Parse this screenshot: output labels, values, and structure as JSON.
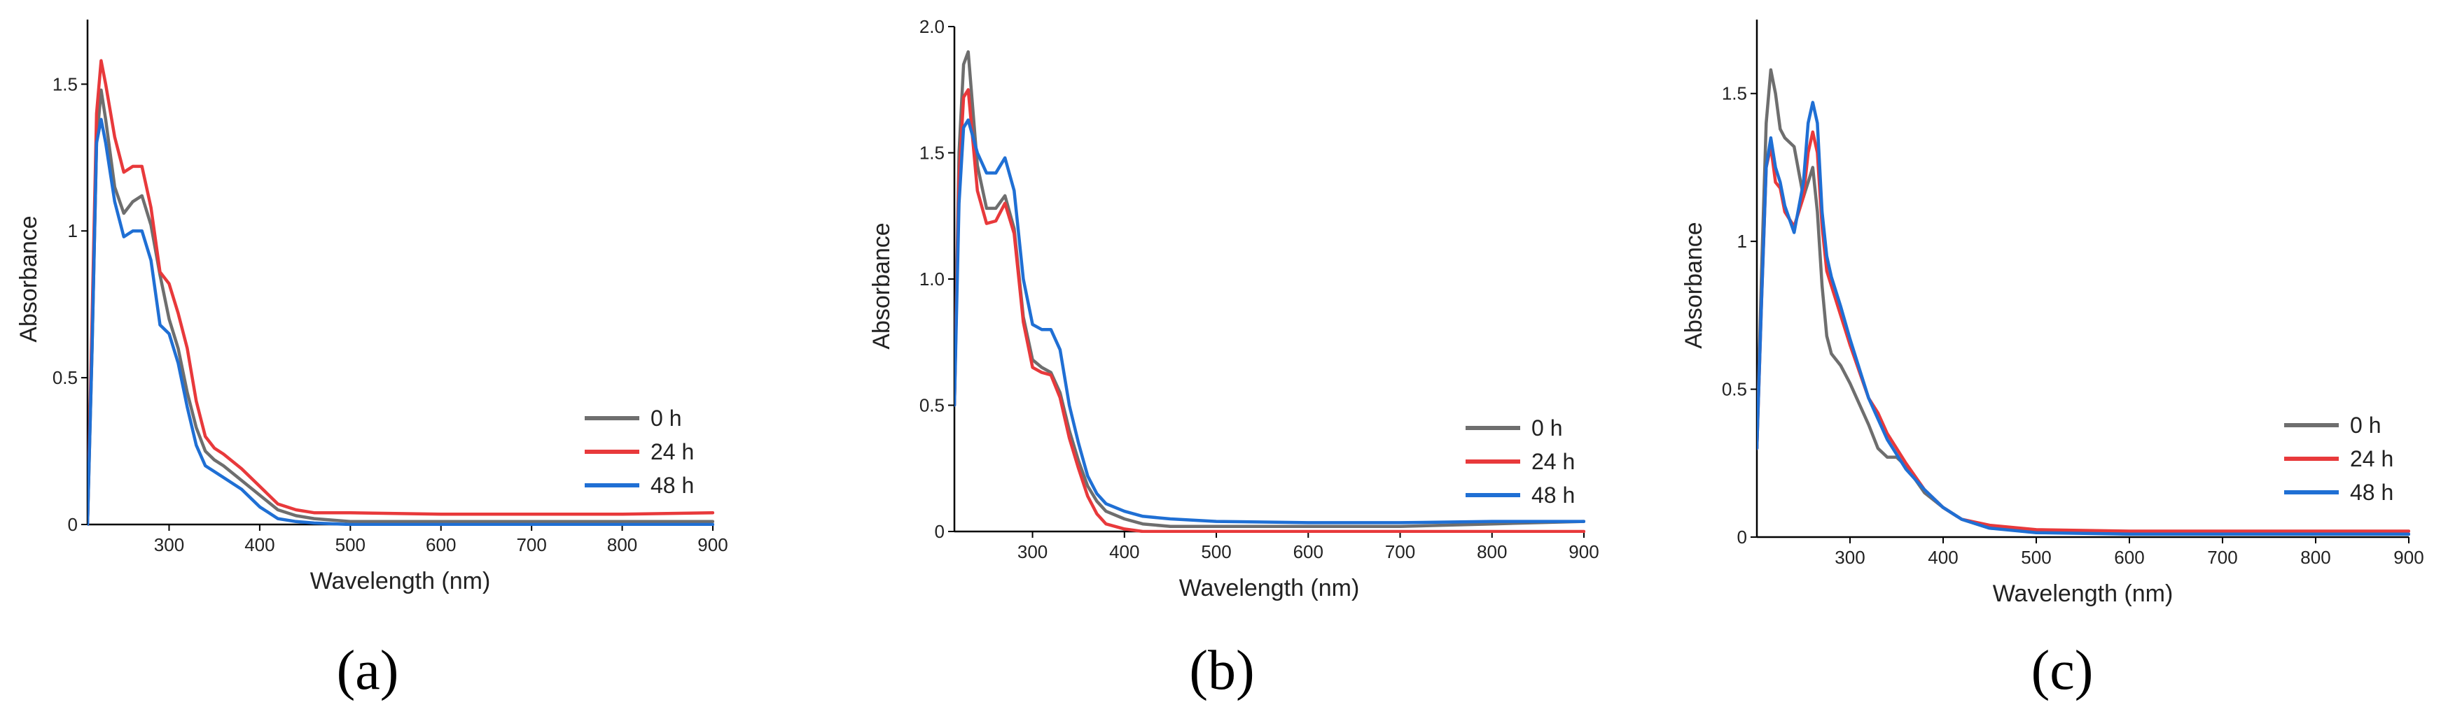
{
  "colors": {
    "0h": "#6e6e6e",
    "24h": "#e8393b",
    "48h": "#1f6fd4"
  },
  "chart_data": [
    {
      "type": "line",
      "panel_label": "(a)",
      "xlabel": "Wavelength (nm)",
      "ylabel": "Absorbance",
      "xlim": [
        210,
        900
      ],
      "ylim": [
        0,
        1.72
      ],
      "xticks": [
        300,
        400,
        500,
        600,
        700,
        800,
        900
      ],
      "yticks": [
        0,
        0.5,
        1,
        1.5
      ],
      "ytick_labels": [
        "0",
        "0.5",
        "1",
        "1.5"
      ],
      "legend": [
        "0 h",
        "24 h",
        "48 h"
      ],
      "series": [
        {
          "name": "0 h",
          "color_key": "0h",
          "x": [
            210,
            215,
            220,
            225,
            230,
            240,
            250,
            260,
            270,
            280,
            290,
            300,
            310,
            320,
            330,
            340,
            350,
            360,
            380,
            400,
            420,
            440,
            460,
            500,
            600,
            700,
            800,
            900
          ],
          "y": [
            0,
            0.6,
            1.3,
            1.48,
            1.38,
            1.15,
            1.06,
            1.1,
            1.12,
            1.02,
            0.85,
            0.7,
            0.6,
            0.45,
            0.33,
            0.25,
            0.22,
            0.2,
            0.15,
            0.1,
            0.05,
            0.03,
            0.02,
            0.01,
            0.01,
            0.01,
            0.01,
            0.01
          ]
        },
        {
          "name": "24 h",
          "color_key": "24h",
          "x": [
            210,
            215,
            220,
            225,
            230,
            240,
            250,
            260,
            270,
            280,
            290,
            300,
            310,
            320,
            330,
            340,
            350,
            360,
            380,
            400,
            420,
            440,
            460,
            500,
            600,
            700,
            800,
            900
          ],
          "y": [
            0,
            0.7,
            1.4,
            1.58,
            1.5,
            1.32,
            1.2,
            1.22,
            1.22,
            1.08,
            0.86,
            0.82,
            0.72,
            0.6,
            0.42,
            0.3,
            0.26,
            0.24,
            0.19,
            0.13,
            0.07,
            0.05,
            0.04,
            0.04,
            0.035,
            0.035,
            0.035,
            0.04
          ]
        },
        {
          "name": "48 h",
          "color_key": "48h",
          "x": [
            210,
            215,
            220,
            225,
            230,
            240,
            250,
            260,
            270,
            280,
            290,
            300,
            310,
            320,
            330,
            340,
            350,
            360,
            380,
            400,
            420,
            440,
            460,
            500,
            600,
            700,
            800,
            900
          ],
          "y": [
            0,
            0.6,
            1.3,
            1.38,
            1.3,
            1.1,
            0.98,
            1.0,
            1.0,
            0.9,
            0.68,
            0.65,
            0.55,
            0.4,
            0.27,
            0.2,
            0.18,
            0.16,
            0.12,
            0.06,
            0.02,
            0.01,
            0.005,
            0,
            0,
            0,
            0,
            0
          ]
        }
      ]
    },
    {
      "type": "line",
      "panel_label": "(b)",
      "xlabel": "Wavelength (nm)",
      "ylabel": "Absorbance",
      "xlim": [
        215,
        900
      ],
      "ylim": [
        0,
        2.0
      ],
      "xticks": [
        300,
        400,
        500,
        600,
        700,
        800,
        900
      ],
      "yticks": [
        0,
        0.5,
        1.0,
        1.5,
        2.0
      ],
      "ytick_labels": [
        "0",
        "0.5",
        "1.0",
        "1.5",
        "2.0"
      ],
      "legend": [
        "0 h",
        "24 h",
        "48 h"
      ],
      "series": [
        {
          "name": "0 h",
          "color_key": "0h",
          "x": [
            215,
            220,
            225,
            230,
            240,
            250,
            260,
            270,
            280,
            290,
            300,
            310,
            320,
            330,
            340,
            350,
            360,
            370,
            380,
            400,
            420,
            450,
            500,
            600,
            700,
            800,
            900
          ],
          "y": [
            0.5,
            1.5,
            1.85,
            1.9,
            1.45,
            1.28,
            1.28,
            1.33,
            1.2,
            0.85,
            0.68,
            0.65,
            0.63,
            0.55,
            0.4,
            0.28,
            0.18,
            0.12,
            0.08,
            0.05,
            0.03,
            0.02,
            0.02,
            0.02,
            0.02,
            0.03,
            0.04
          ]
        },
        {
          "name": "24 h",
          "color_key": "24h",
          "x": [
            215,
            220,
            225,
            230,
            240,
            250,
            260,
            270,
            280,
            290,
            300,
            310,
            320,
            330,
            340,
            350,
            360,
            370,
            380,
            400,
            420,
            450,
            500,
            600,
            700,
            800,
            900
          ],
          "y": [
            0.5,
            1.4,
            1.72,
            1.75,
            1.35,
            1.22,
            1.23,
            1.3,
            1.18,
            0.83,
            0.65,
            0.63,
            0.62,
            0.53,
            0.37,
            0.25,
            0.14,
            0.07,
            0.03,
            0.01,
            0,
            0,
            0,
            0,
            0,
            0,
            0
          ]
        },
        {
          "name": "48 h",
          "color_key": "48h",
          "x": [
            215,
            220,
            225,
            230,
            240,
            250,
            260,
            270,
            280,
            290,
            300,
            310,
            320,
            330,
            340,
            350,
            360,
            370,
            380,
            400,
            420,
            450,
            500,
            600,
            700,
            800,
            900
          ],
          "y": [
            0.5,
            1.3,
            1.6,
            1.63,
            1.5,
            1.42,
            1.42,
            1.48,
            1.35,
            1.0,
            0.82,
            0.8,
            0.8,
            0.72,
            0.5,
            0.35,
            0.22,
            0.15,
            0.11,
            0.08,
            0.06,
            0.05,
            0.04,
            0.035,
            0.035,
            0.04,
            0.04
          ]
        }
      ]
    },
    {
      "type": "line",
      "panel_label": "(c)",
      "xlabel": "Wavelength (nm)",
      "ylabel": "Absorbance",
      "xlim": [
        200,
        900
      ],
      "ylim": [
        0,
        1.75
      ],
      "xticks": [
        300,
        400,
        500,
        600,
        700,
        800,
        900
      ],
      "yticks": [
        0,
        0.5,
        1,
        1.5
      ],
      "ytick_labels": [
        "0",
        "0.5",
        "1",
        "1.5"
      ],
      "legend": [
        "0 h",
        "24 h",
        "48 h"
      ],
      "series": [
        {
          "name": "0 h",
          "color_key": "0h",
          "x": [
            200,
            205,
            210,
            215,
            220,
            225,
            230,
            240,
            250,
            255,
            260,
            265,
            270,
            275,
            280,
            290,
            300,
            310,
            320,
            330,
            340,
            350,
            360,
            380,
            400,
            420,
            450,
            500,
            600,
            700,
            800,
            900
          ],
          "y": [
            0.3,
            0.9,
            1.4,
            1.58,
            1.5,
            1.38,
            1.35,
            1.32,
            1.15,
            1.2,
            1.25,
            1.1,
            0.85,
            0.68,
            0.62,
            0.58,
            0.52,
            0.45,
            0.38,
            0.3,
            0.27,
            0.27,
            0.24,
            0.15,
            0.1,
            0.06,
            0.03,
            0.02,
            0.01,
            0.01,
            0.01,
            0.01
          ]
        },
        {
          "name": "24 h",
          "color_key": "24h",
          "x": [
            200,
            205,
            210,
            215,
            220,
            225,
            230,
            240,
            250,
            255,
            260,
            265,
            270,
            275,
            280,
            290,
            300,
            310,
            320,
            330,
            340,
            350,
            360,
            380,
            400,
            420,
            450,
            500,
            600,
            700,
            800,
            900
          ],
          "y": [
            0.3,
            0.8,
            1.25,
            1.32,
            1.2,
            1.18,
            1.1,
            1.05,
            1.15,
            1.3,
            1.37,
            1.3,
            1.05,
            0.9,
            0.85,
            0.75,
            0.65,
            0.56,
            0.47,
            0.42,
            0.35,
            0.3,
            0.25,
            0.16,
            0.1,
            0.06,
            0.04,
            0.025,
            0.02,
            0.02,
            0.02,
            0.02
          ]
        },
        {
          "name": "48 h",
          "color_key": "48h",
          "x": [
            200,
            205,
            210,
            215,
            220,
            225,
            230,
            240,
            250,
            255,
            260,
            265,
            270,
            275,
            280,
            290,
            300,
            310,
            320,
            330,
            340,
            350,
            360,
            380,
            400,
            420,
            450,
            500,
            600,
            700,
            800,
            900
          ],
          "y": [
            0.3,
            0.8,
            1.25,
            1.35,
            1.25,
            1.2,
            1.12,
            1.03,
            1.2,
            1.4,
            1.47,
            1.4,
            1.1,
            0.95,
            0.88,
            0.78,
            0.67,
            0.57,
            0.47,
            0.4,
            0.33,
            0.28,
            0.23,
            0.16,
            0.1,
            0.06,
            0.03,
            0.015,
            0.01,
            0.01,
            0.01,
            0.01
          ]
        }
      ]
    }
  ]
}
